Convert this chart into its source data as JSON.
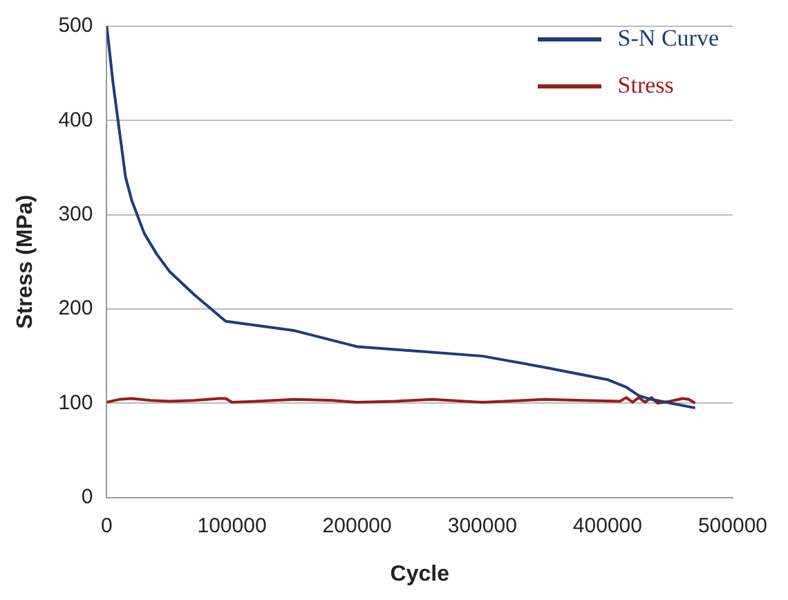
{
  "chart_data": {
    "type": "line",
    "xlabel": "Cycle",
    "ylabel": "Stress (MPa)",
    "xlim": [
      0,
      500000
    ],
    "xticks": [
      0,
      100000,
      200000,
      300000,
      400000,
      500000
    ],
    "ylim": [
      0,
      500
    ],
    "yticks": [
      0,
      100,
      200,
      300,
      400,
      500
    ],
    "grid": "y",
    "legend": "top right",
    "marker": "none",
    "line_style": "solid",
    "series": [
      {
        "name": "S-N Curve",
        "color": "#1f3c78",
        "x": [
          0,
          5000,
          9000,
          15000,
          20000,
          30000,
          40000,
          50000,
          70000,
          95000,
          150000,
          200000,
          250000,
          300000,
          350000,
          400000,
          415000,
          425000,
          435000,
          470000
        ],
        "values": [
          500,
          440,
          400,
          340,
          315,
          280,
          258,
          240,
          215,
          187,
          177,
          160,
          155,
          150,
          138,
          125,
          117,
          108,
          104,
          95
        ]
      },
      {
        "name": "Stress",
        "color": "#9b1c1c",
        "x": [
          0,
          10000,
          20000,
          35000,
          50000,
          70000,
          90000,
          95000,
          100000,
          120000,
          150000,
          180000,
          200000,
          230000,
          260000,
          300000,
          350000,
          380000,
          410000,
          415000,
          420000,
          425000,
          430000,
          435000,
          440000,
          450000,
          460000,
          465000,
          470000
        ],
        "values": [
          101,
          104,
          105,
          103,
          102,
          103,
          105,
          105,
          101,
          102,
          104,
          103,
          101,
          102,
          104,
          101,
          104,
          103,
          102,
          106,
          101,
          106,
          101,
          106,
          100,
          102,
          105,
          104,
          100
        ]
      }
    ]
  }
}
